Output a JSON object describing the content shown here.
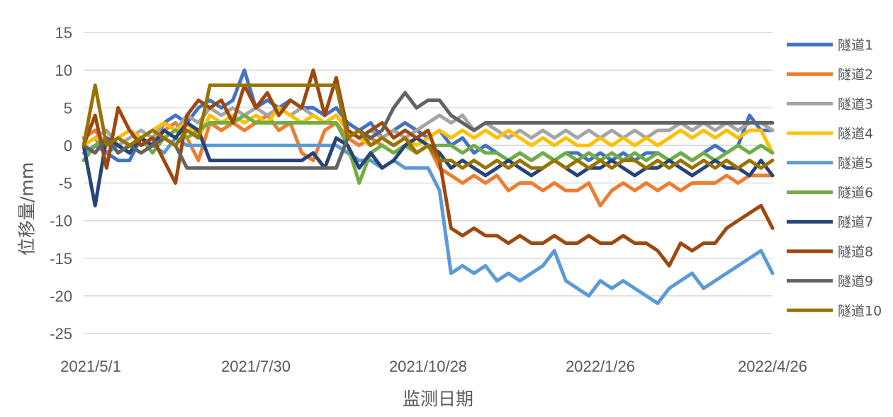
{
  "chart_data": {
    "type": "line",
    "xlabel": "监测日期",
    "ylabel": "位移量/mm",
    "ylim": [
      -25,
      15
    ],
    "yticks": [
      15,
      10,
      5,
      0,
      -5,
      -10,
      -15,
      -20,
      -25
    ],
    "xticks": [
      "2021/5/1",
      "2021/7/30",
      "2021/10/28",
      "2022/1/26",
      "2022/4/26"
    ],
    "grid": true,
    "legend": "right",
    "x": [
      "2021/5/1",
      "2021/5/7",
      "2021/5/13",
      "2021/5/19",
      "2021/5/25",
      "2021/5/31",
      "2021/6/6",
      "2021/6/12",
      "2021/6/18",
      "2021/6/24",
      "2021/6/30",
      "2021/7/6",
      "2021/7/12",
      "2021/7/18",
      "2021/7/24",
      "2021/7/30",
      "2021/8/5",
      "2021/8/11",
      "2021/8/17",
      "2021/8/23",
      "2021/8/29",
      "2021/9/4",
      "2021/9/10",
      "2021/9/16",
      "2021/9/22",
      "2021/9/28",
      "2021/10/4",
      "2021/10/10",
      "2021/10/16",
      "2021/10/22",
      "2021/10/28",
      "2021/11/3",
      "2021/11/9",
      "2021/11/15",
      "2021/11/21",
      "2021/11/27",
      "2021/12/3",
      "2021/12/9",
      "2021/12/15",
      "2021/12/21",
      "2021/12/27",
      "2022/1/2",
      "2022/1/8",
      "2022/1/14",
      "2022/1/20",
      "2022/1/26",
      "2022/2/1",
      "2022/2/7",
      "2022/2/13",
      "2022/2/19",
      "2022/2/25",
      "2022/3/3",
      "2022/3/9",
      "2022/3/15",
      "2022/3/21",
      "2022/3/27",
      "2022/4/2",
      "2022/4/8",
      "2022/4/14",
      "2022/4/20",
      "2022/4/26"
    ],
    "series": [
      {
        "name": "隧道1",
        "color": "#4472C4",
        "values": [
          0,
          1,
          -1,
          -2,
          -2,
          1,
          0,
          3,
          4,
          3,
          5,
          6,
          5,
          6,
          10,
          5,
          6,
          5,
          6,
          5,
          5,
          4,
          5,
          3,
          2,
          3,
          1,
          2,
          3,
          2,
          1,
          2,
          0,
          1,
          -1,
          0,
          -1,
          -2,
          -1,
          -2,
          -1,
          -2,
          -1,
          -1,
          -2,
          -1,
          -2,
          -1,
          -2,
          -1,
          -1,
          -2,
          -1,
          -2,
          -1,
          0,
          -1,
          0,
          4,
          2,
          2
        ]
      },
      {
        "name": "隧道2",
        "color": "#ED7D31",
        "values": [
          1,
          2,
          0,
          1,
          2,
          0,
          1,
          2,
          3,
          1,
          -2,
          3,
          2,
          3,
          2,
          3,
          4,
          2,
          3,
          -1,
          -2,
          2,
          3,
          1,
          0,
          1,
          0,
          -1,
          0,
          1,
          0,
          -3,
          -4,
          -5,
          -4,
          -5,
          -4,
          -6,
          -5,
          -5,
          -6,
          -5,
          -6,
          -6,
          -5,
          -8,
          -6,
          -5,
          -6,
          -5,
          -6,
          -5,
          -6,
          -5,
          -5,
          -5,
          -4,
          -5,
          -4,
          -4,
          -4
        ]
      },
      {
        "name": "隧道3",
        "color": "#A5A5A5",
        "values": [
          0,
          1,
          2,
          0,
          1,
          2,
          1,
          3,
          2,
          4,
          3,
          5,
          4,
          5,
          4,
          5,
          4,
          5,
          4,
          5,
          4,
          3,
          4,
          2,
          1,
          2,
          1,
          2,
          1,
          2,
          3,
          4,
          3,
          4,
          2,
          3,
          2,
          1,
          2,
          1,
          2,
          1,
          2,
          1,
          2,
          1,
          2,
          1,
          2,
          1,
          2,
          2,
          3,
          2,
          3,
          2,
          3,
          2,
          3,
          3,
          2
        ]
      },
      {
        "name": "隧道4",
        "color": "#FFC000",
        "values": [
          0,
          1,
          0,
          1,
          2,
          1,
          2,
          3,
          2,
          3,
          1,
          4,
          3,
          4,
          3,
          4,
          3,
          5,
          4,
          3,
          4,
          3,
          4,
          2,
          1,
          0,
          1,
          0,
          1,
          0,
          1,
          2,
          1,
          2,
          1,
          2,
          1,
          2,
          1,
          0,
          1,
          0,
          1,
          0,
          0,
          1,
          0,
          1,
          0,
          1,
          0,
          1,
          2,
          1,
          2,
          1,
          2,
          1,
          2,
          2,
          -1
        ]
      },
      {
        "name": "隧道5",
        "color": "#5B9BD5",
        "values": [
          -1,
          0,
          -1,
          0,
          -1,
          1,
          0,
          -1,
          1,
          0,
          0,
          0,
          0,
          0,
          0,
          0,
          0,
          0,
          0,
          0,
          0,
          0,
          0,
          -1,
          -2,
          -2,
          -3,
          -2,
          -3,
          -3,
          -3,
          -6,
          -17,
          -16,
          -17,
          -16,
          -18,
          -17,
          -18,
          -17,
          -16,
          -14,
          -18,
          -19,
          -20,
          -18,
          -19,
          -18,
          -19,
          -20,
          -21,
          -19,
          -18,
          -17,
          -19,
          -18,
          -17,
          -16,
          -15,
          -14,
          -17
        ]
      },
      {
        "name": "隧道6",
        "color": "#70AD47",
        "values": [
          -2,
          0,
          1,
          -1,
          0,
          1,
          -1,
          1,
          2,
          1,
          2,
          3,
          3,
          3,
          4,
          3,
          3,
          3,
          3,
          3,
          3,
          3,
          3,
          0,
          -5,
          -1,
          0,
          -1,
          0,
          -1,
          0,
          0,
          0,
          -1,
          0,
          -1,
          -1,
          -2,
          -1,
          -2,
          -1,
          -2,
          -1,
          -2,
          -1,
          -2,
          -1,
          -2,
          -1,
          -2,
          -1,
          -2,
          -1,
          -2,
          -1,
          -2,
          -1,
          0,
          -1,
          0,
          -1
        ]
      },
      {
        "name": "隧道7",
        "color": "#264478",
        "values": [
          0,
          -8,
          1,
          0,
          -1,
          1,
          0,
          2,
          1,
          3,
          2,
          -2,
          -2,
          -2,
          -2,
          -2,
          -2,
          -2,
          -2,
          -2,
          -1,
          -3,
          1,
          0,
          -3,
          -1,
          -3,
          -2,
          0,
          1,
          0,
          -1,
          -3,
          -2,
          -3,
          -4,
          -3,
          -2,
          -3,
          -4,
          -3,
          -2,
          -3,
          -4,
          -3,
          -3,
          -2,
          -3,
          -4,
          -3,
          -3,
          -2,
          -3,
          -4,
          -3,
          -2,
          -3,
          -3,
          -4,
          -2,
          -4
        ]
      },
      {
        "name": "隧道8",
        "color": "#9E480E",
        "values": [
          0,
          4,
          -3,
          5,
          2,
          0,
          1,
          -2,
          -5,
          4,
          6,
          5,
          6,
          3,
          8,
          5,
          7,
          4,
          6,
          5,
          10,
          4,
          9,
          2,
          1,
          2,
          3,
          1,
          2,
          1,
          2,
          -2,
          -11,
          -12,
          -11,
          -12,
          -12,
          -13,
          -12,
          -13,
          -13,
          -12,
          -13,
          -13,
          -12,
          -13,
          -13,
          -12,
          -13,
          -13,
          -14,
          -16,
          -13,
          -14,
          -13,
          -13,
          -11,
          -10,
          -9,
          -8,
          -11
        ]
      },
      {
        "name": "隧道9",
        "color": "#636363",
        "values": [
          0,
          -1,
          1,
          -1,
          0,
          -1,
          0,
          1,
          0,
          -3,
          -3,
          -3,
          -3,
          -3,
          -3,
          -3,
          -3,
          -3,
          -3,
          -3,
          -3,
          -3,
          -3,
          1,
          2,
          1,
          2,
          5,
          7,
          5,
          6,
          6,
          4,
          3,
          2,
          3,
          3,
          3,
          3,
          3,
          3,
          3,
          3,
          3,
          3,
          3,
          3,
          3,
          3,
          3,
          3,
          3,
          3,
          3,
          3,
          3,
          3,
          3,
          3,
          3,
          3
        ]
      },
      {
        "name": "隧道10",
        "color": "#997300",
        "values": [
          0,
          8,
          0,
          1,
          0,
          1,
          2,
          1,
          0,
          2,
          1,
          8,
          8,
          8,
          8,
          8,
          8,
          8,
          8,
          8,
          8,
          8,
          8,
          1,
          2,
          0,
          1,
          0,
          1,
          -1,
          0,
          -2,
          -2,
          -3,
          -2,
          -3,
          -2,
          -3,
          -2,
          -3,
          -3,
          -2,
          -3,
          -2,
          -3,
          -2,
          -3,
          -2,
          -2,
          -3,
          -2,
          -3,
          -2,
          -3,
          -2,
          -3,
          -2,
          -3,
          -2,
          -3,
          -2
        ]
      }
    ]
  }
}
